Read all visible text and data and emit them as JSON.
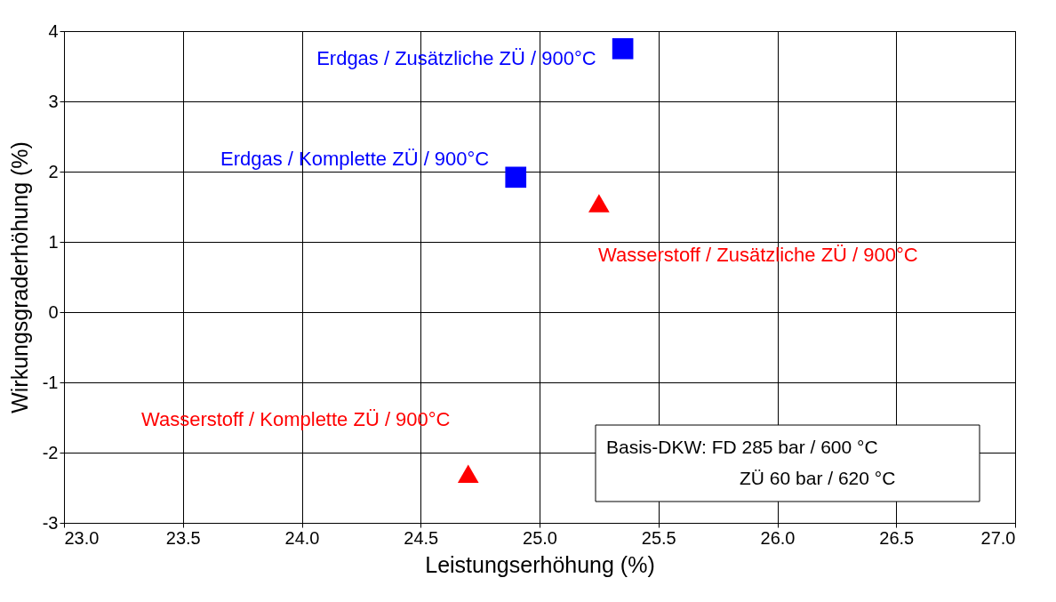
{
  "chart_data": {
    "type": "scatter",
    "xlabel": "Leistungserhöhung (%)",
    "ylabel": "Wirkungsgraderhöhung (%)",
    "series": [
      {
        "name": "Erdgas / Zusätzliche ZÜ / 900°C",
        "color": "#0000ff",
        "marker": "square",
        "x": [
          25.35
        ],
        "values": [
          3.75
        ]
      },
      {
        "name": "Erdgas / Komplette ZÜ / 900°C",
        "color": "#0000ff",
        "marker": "square",
        "x": [
          24.9
        ],
        "values": [
          1.92
        ]
      },
      {
        "name": "Wasserstoff / Zusätzliche ZÜ / 900°C",
        "color": "#ff0000",
        "marker": "triangle",
        "x": [
          25.25
        ],
        "values": [
          1.55
        ]
      },
      {
        "name": "Wasserstoff / Komplette ZÜ / 900°C",
        "color": "#ff0000",
        "marker": "triangle",
        "x": [
          24.7
        ],
        "values": [
          -2.3
        ]
      }
    ],
    "xlim": [
      23,
      27
    ],
    "xticks": [
      {
        "value": 23,
        "label": "23.0"
      },
      {
        "value": 23.5,
        "label": "23.5"
      },
      {
        "value": 24,
        "label": "24.0"
      },
      {
        "value": 24.5,
        "label": "24.5"
      },
      {
        "value": 25,
        "label": "25.0"
      },
      {
        "value": 25.5,
        "label": "25.5"
      },
      {
        "value": 26,
        "label": "26.0"
      },
      {
        "value": 26.5,
        "label": "26.5"
      },
      {
        "value": 27,
        "label": "27.0"
      }
    ],
    "ylim": [
      -3,
      4
    ],
    "yticks": [
      -3,
      -2,
      -1,
      0,
      1,
      2,
      3,
      4
    ],
    "grid": true,
    "annotations": [
      "Basis-DKW: FD 285 bar / 600 °C",
      "ZÜ 60 bar / 620 °C"
    ]
  }
}
